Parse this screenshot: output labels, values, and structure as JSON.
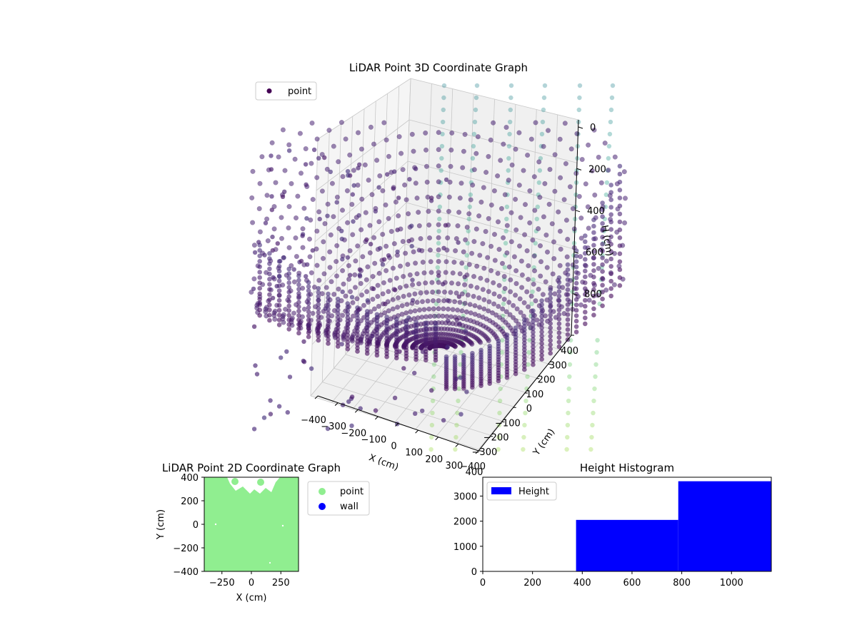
{
  "figure": {
    "background": "#ffffff"
  },
  "chart_data": [
    {
      "id": "lidar-3d",
      "type": "scatter",
      "title": "LiDAR Point 3D Coordinate Graph",
      "xlabel": "X (cm)",
      "ylabel": "Y (cm)",
      "zlabel": "H (cm)",
      "xlim": [
        -400,
        400
      ],
      "ylim": [
        -400,
        400
      ],
      "zlim": [
        0,
        1000
      ],
      "xticks": [
        "−400",
        "−300",
        "−200",
        "−100",
        "0",
        "100",
        "200",
        "300",
        "400"
      ],
      "yticks": [
        "−400",
        "−300",
        "−200",
        "−100",
        "0",
        "100",
        "200",
        "300",
        "400"
      ],
      "zticks": [
        "0",
        "200",
        "400",
        "600",
        "800"
      ],
      "legend": {
        "entries": [
          "point"
        ],
        "placement": "top-left"
      },
      "colormap": "viridis",
      "grid": true,
      "series": [
        {
          "name": "point",
          "color": "#440154",
          "description": "dense bowl-shaped LiDAR point cloud, heights colored by viridis colormap"
        }
      ]
    },
    {
      "id": "lidar-2d",
      "type": "scatter",
      "title": "LiDAR Point 2D Coordinate Graph",
      "xlabel": "X (cm)",
      "ylabel": "Y (cm)",
      "xlim": [
        -400,
        400
      ],
      "ylim": [
        -400,
        400
      ],
      "xticks": [
        "−250",
        "0",
        "250"
      ],
      "yticks": [
        "400",
        "200",
        "0",
        "−200",
        "−400"
      ],
      "legend": {
        "entries": [
          "point",
          "wall"
        ],
        "placement": "right"
      },
      "series": [
        {
          "name": "point",
          "color": "#90ee90"
        },
        {
          "name": "wall",
          "color": "#0000ff"
        }
      ]
    },
    {
      "id": "height-hist",
      "type": "bar",
      "title": "Height Histogram",
      "xlim": [
        0,
        1160
      ],
      "ylim": [
        0,
        3750
      ],
      "xticks": [
        "0",
        "200",
        "400",
        "600",
        "800",
        "1000"
      ],
      "yticks": [
        "0",
        "1000",
        "2000",
        "3000"
      ],
      "bins": [
        {
          "x0": 375,
          "x1": 786,
          "count": 2050
        },
        {
          "x0": 786,
          "x1": 1160,
          "count": 3590
        }
      ],
      "legend": {
        "entries": [
          "Height"
        ],
        "placement": "top-left"
      },
      "series": [
        {
          "name": "Height",
          "color": "#0000ff"
        }
      ]
    }
  ]
}
